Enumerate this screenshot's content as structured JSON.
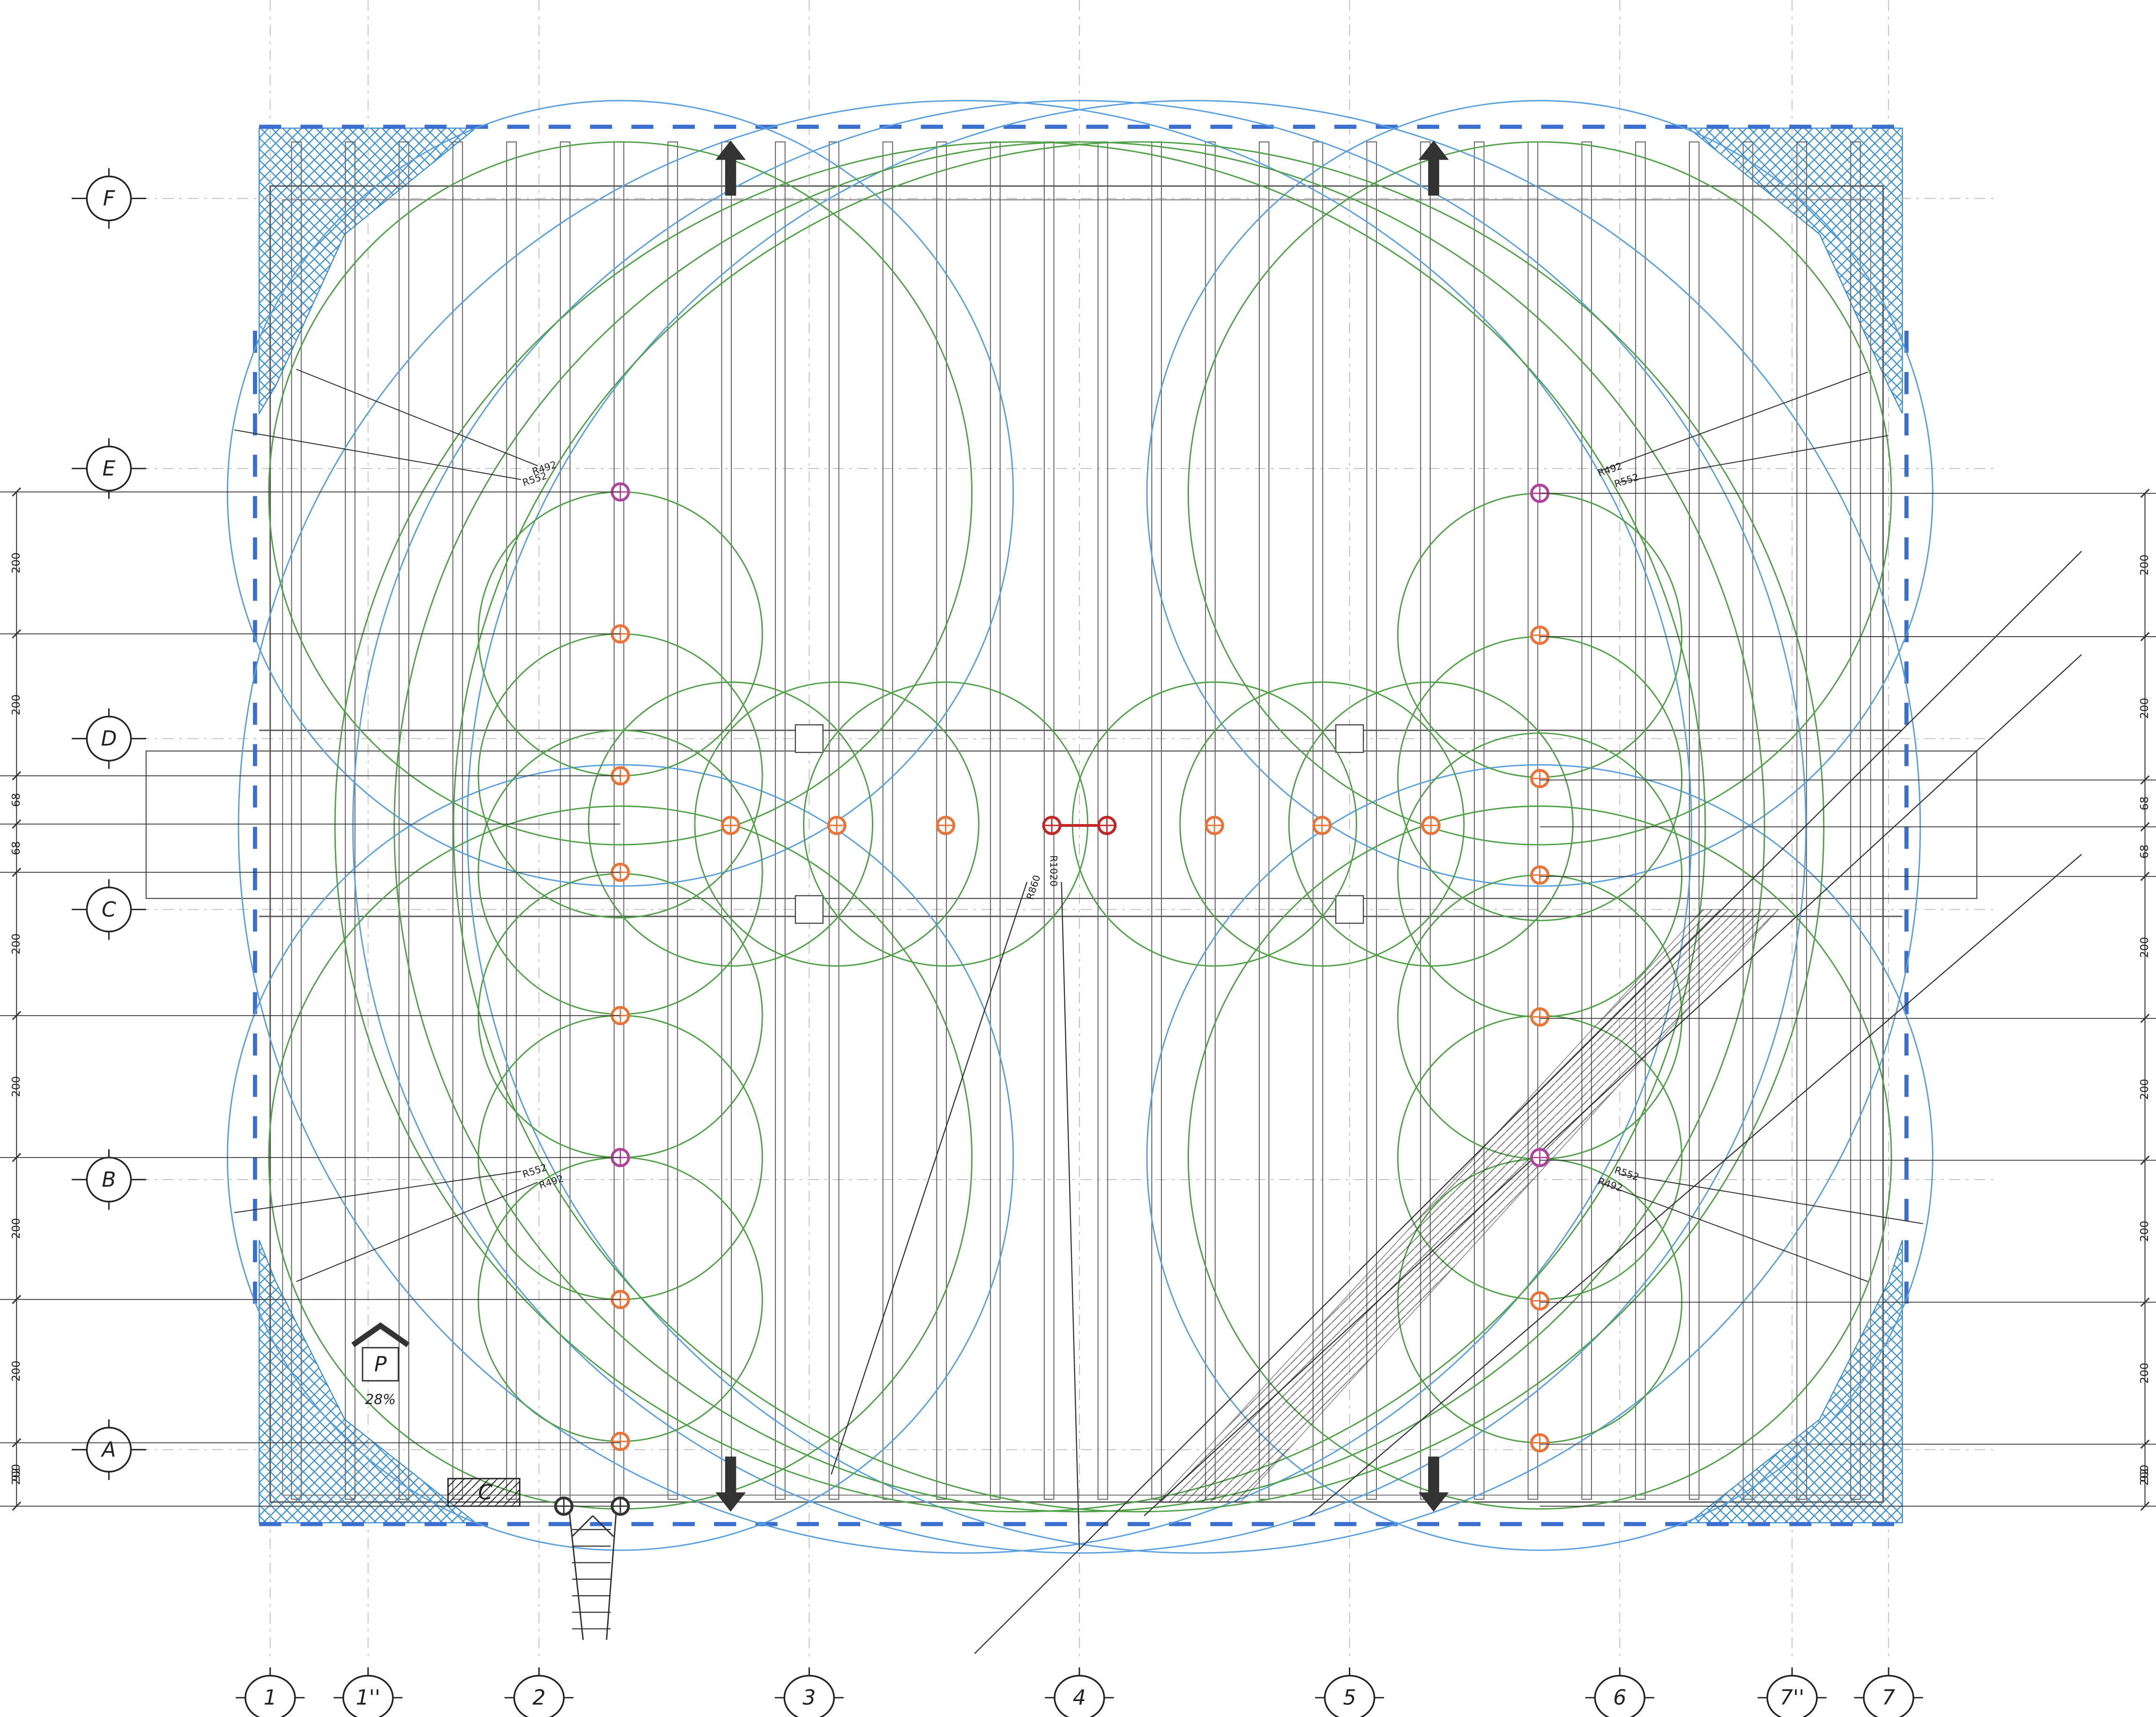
{
  "grid_rows": [
    "F",
    "E",
    "D",
    "C",
    "B",
    "A"
  ],
  "grid_columns": [
    "1",
    "1''",
    "2",
    "3",
    "4",
    "5",
    "6",
    "7''",
    "7"
  ],
  "dimensions_left": [
    200,
    200,
    68,
    68,
    200,
    200,
    200,
    200,
    200,
    92
  ],
  "dimensions_right": [
    200,
    200,
    68,
    68,
    200,
    200,
    200,
    200,
    200,
    92
  ],
  "radius_labels": [
    "R492",
    "R552",
    "R492",
    "R552",
    "R552",
    "R492",
    "R552",
    "R492",
    "R860",
    "R1020"
  ],
  "parking": {
    "symbol": "P",
    "slope": "28%"
  },
  "hatch_label": "C"
}
